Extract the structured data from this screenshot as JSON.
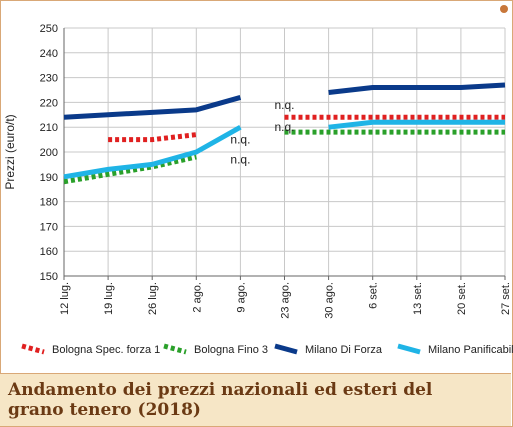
{
  "caption": {
    "title": "Andamento dei prezzi nazionali ed esteri del grano tenero (2018)"
  },
  "chart_data": {
    "type": "line",
    "title": "",
    "ylabel": "Prezzi (euro/t)",
    "xlabel": "",
    "ylim": [
      150,
      250
    ],
    "yticks": [
      150,
      160,
      170,
      180,
      190,
      200,
      210,
      220,
      230,
      240,
      250
    ],
    "categories": [
      "12 lug.",
      "19 lug.",
      "26 lug.",
      "2 ago.",
      "9 ago.",
      "23 ago.",
      "30 ago.",
      "6 set.",
      "13 set.",
      "20 set.",
      "27 set."
    ],
    "grid": true,
    "legend_position": "bottom",
    "series": [
      {
        "name": "Bologna Spec. forza 1",
        "color": "#e02020",
        "style": "dotted",
        "values": [
          null,
          205,
          205,
          207,
          null,
          214,
          214,
          214,
          214,
          214,
          214
        ]
      },
      {
        "name": "Bologna Fino 3",
        "color": "#2aa02a",
        "style": "dotted",
        "values": [
          188,
          191,
          194,
          198,
          null,
          208,
          208,
          208,
          208,
          208,
          208
        ]
      },
      {
        "name": "Milano Di Forza",
        "color": "#0a3a8a",
        "style": "solid",
        "values": [
          214,
          215,
          216,
          217,
          222,
          null,
          224,
          226,
          226,
          226,
          227
        ]
      },
      {
        "name": "Milano Panificabile",
        "color": "#1fb4e6",
        "style": "solid",
        "values": [
          190,
          193,
          195,
          200,
          210,
          null,
          210,
          212,
          212,
          212,
          212
        ]
      }
    ],
    "annotations": [
      {
        "text": "n.q.",
        "category": "9 ago.",
        "value": 205
      },
      {
        "text": "n.q.",
        "category": "9 ago.",
        "value": 197
      },
      {
        "text": "n.q.",
        "category": "23 ago.",
        "value": 219
      },
      {
        "text": "n.q.",
        "category": "23 ago.",
        "value": 210
      }
    ]
  }
}
